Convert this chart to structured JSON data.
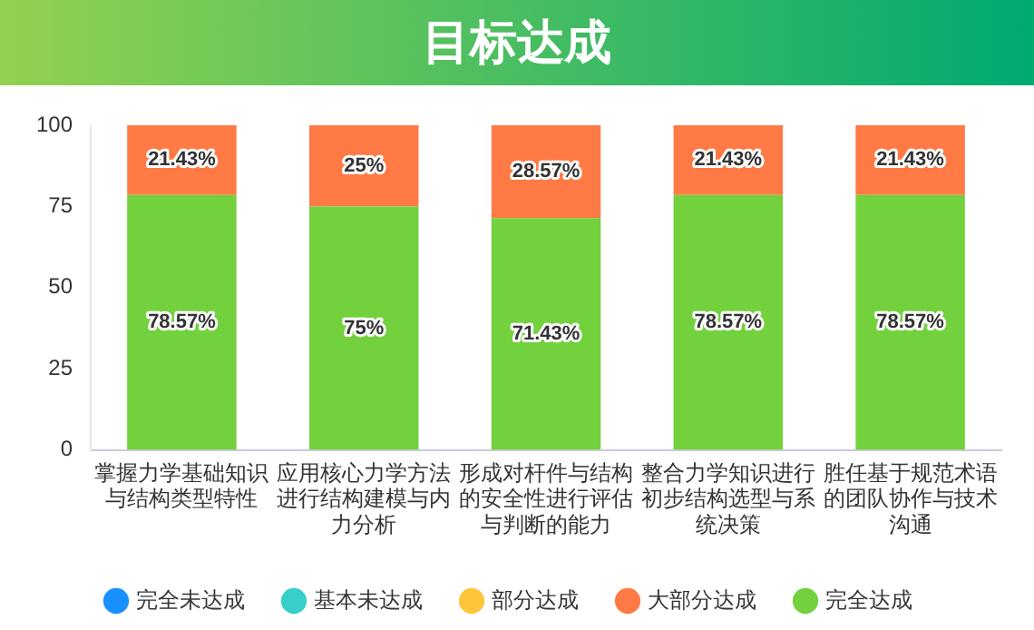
{
  "chart_data": {
    "type": "bar",
    "title": "目标达成",
    "stacked": true,
    "categories": [
      "掌握力学基础知识与结构类型特性",
      "应用核心力学方法进行结构建模与内力分析",
      "形成对杆件与结构的安全性进行评估与判断的能力",
      "整合力学知识进行初步结构选型与系统决策",
      "胜任基于规范术语的团队协作与技术沟通"
    ],
    "series": [
      {
        "name": "完全达成",
        "color": "#73d13d",
        "values": [
          78.57,
          75,
          71.43,
          78.57,
          78.57
        ],
        "value_labels": [
          "78.57%",
          "75%",
          "71.43%",
          "78.57%",
          "78.57%"
        ]
      },
      {
        "name": "大部分达成",
        "color": "#ff7a45",
        "values": [
          21.43,
          25,
          28.57,
          21.43,
          21.43
        ],
        "value_labels": [
          "21.43%",
          "25%",
          "28.57%",
          "21.43%",
          "21.43%"
        ]
      },
      {
        "name": "部分达成",
        "color": "#ffc53d",
        "values": [
          0,
          0,
          0,
          0,
          0
        ],
        "value_labels": [
          null,
          null,
          null,
          null,
          null
        ]
      },
      {
        "name": "基本未达成",
        "color": "#36cfc9",
        "values": [
          0,
          0,
          0,
          0,
          0
        ],
        "value_labels": [
          null,
          null,
          null,
          null,
          null
        ]
      },
      {
        "name": "完全未达成",
        "color": "#1890ff",
        "values": [
          0,
          0,
          0,
          0,
          0
        ],
        "value_labels": [
          null,
          null,
          null,
          null,
          null
        ]
      }
    ],
    "ylim": [
      0,
      100
    ],
    "yticks": [
      0,
      25,
      50,
      75,
      100
    ],
    "grid": false,
    "legend": "bottom"
  }
}
